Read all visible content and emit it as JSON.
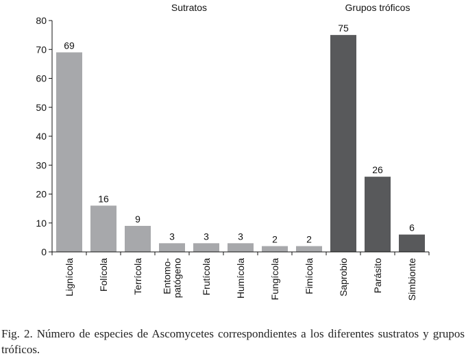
{
  "chart_data": {
    "type": "bar",
    "group_labels": [
      "Sutratos",
      "Grupos tróficos"
    ],
    "categories": [
      "Lignícola",
      "Folícola",
      "Terrícola",
      "Entomo-\npatógeno",
      "Frutícola",
      "Humícola",
      "Fungícola",
      "Fimícola",
      "Saprobio",
      "Parásito",
      "Simbionte"
    ],
    "values": [
      69,
      16,
      9,
      3,
      3,
      3,
      2,
      2,
      75,
      26,
      6
    ],
    "groups": [
      0,
      0,
      0,
      0,
      0,
      0,
      0,
      0,
      1,
      1,
      1
    ],
    "group_colors": [
      "#a7a8ab",
      "#58595b"
    ],
    "ylim": [
      0,
      80
    ],
    "yticks": [
      0,
      10,
      20,
      30,
      40,
      50,
      60,
      70,
      80
    ],
    "xlabel": "",
    "ylabel": "",
    "grid": false
  },
  "caption": "Fig. 2. Número de especies de Ascomycetes correspondientes a los diferentes sustratos y grupos tróficos."
}
